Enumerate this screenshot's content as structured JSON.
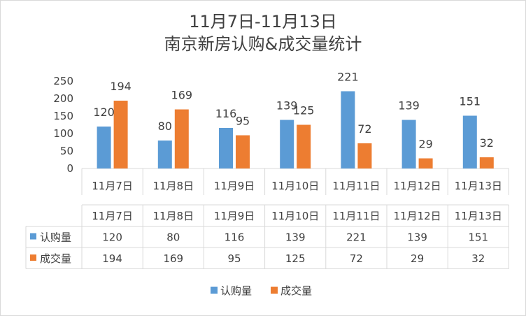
{
  "chart_data": {
    "type": "bar",
    "title_line1": "11月7日-11月13日",
    "title_line2": "南京新房认购&成交量统计",
    "categories": [
      "11月7日",
      "11月8日",
      "11月9日",
      "11月10日",
      "11月11日",
      "11月12日",
      "11月13日"
    ],
    "series": [
      {
        "name": "认购量",
        "color": "#5b9bd5",
        "values": [
          120,
          80,
          116,
          139,
          221,
          139,
          151
        ]
      },
      {
        "name": "成交量",
        "color": "#ed7d31",
        "values": [
          194,
          169,
          95,
          125,
          72,
          29,
          32
        ]
      }
    ],
    "yticks": [
      0,
      50,
      100,
      150,
      200,
      250
    ],
    "ylim": [
      0,
      250
    ],
    "grid": false,
    "data_table": true,
    "legend_position": "bottom"
  }
}
